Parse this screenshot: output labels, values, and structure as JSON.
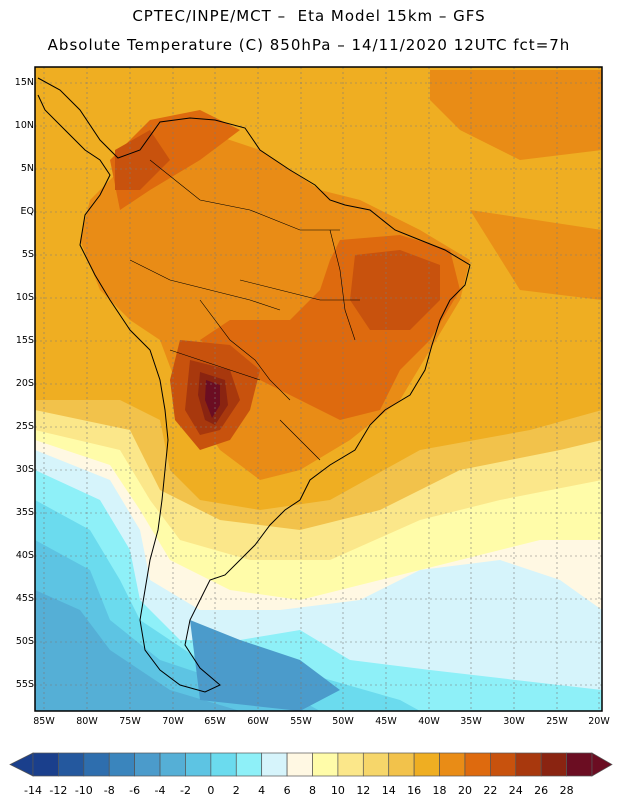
{
  "title_line1": "CPTEC/INPE/MCT –  Eta Model 15km – GFS",
  "title_line2": "Absolute Temperature (C) 850hPa – 14/11/2020 12UTC fct=7h",
  "lat_labels": [
    "15N",
    "10N",
    "5N",
    "EQ",
    "5S",
    "10S",
    "15S",
    "20S",
    "25S",
    "30S",
    "35S",
    "40S",
    "45S",
    "50S",
    "55S"
  ],
  "lon_labels": [
    "85W",
    "80W",
    "75W",
    "70W",
    "65W",
    "60W",
    "55W",
    "50W",
    "45W",
    "40W",
    "35W",
    "30W",
    "25W",
    "20W"
  ],
  "colorbar": {
    "ticks": [
      "-14",
      "-12",
      "-10",
      "-8",
      "-6",
      "-4",
      "-2",
      "0",
      "2",
      "4",
      "6",
      "8",
      "10",
      "12",
      "14",
      "16",
      "18",
      "20",
      "22",
      "24",
      "26",
      "28"
    ],
    "colors": [
      "#1a3f8c",
      "#24589e",
      "#2e6eae",
      "#3a85bd",
      "#4b9bcb",
      "#55afd6",
      "#5dc4e3",
      "#6bdbee",
      "#8ef0f8",
      "#d6f4fb",
      "#fff8e3",
      "#fffca9",
      "#fbe78a",
      "#f6d66a",
      "#f2c24b",
      "#efae22",
      "#e98c16",
      "#de6a0e",
      "#c8520d",
      "#a8380d",
      "#8a2411",
      "#6b0d22"
    ]
  }
}
